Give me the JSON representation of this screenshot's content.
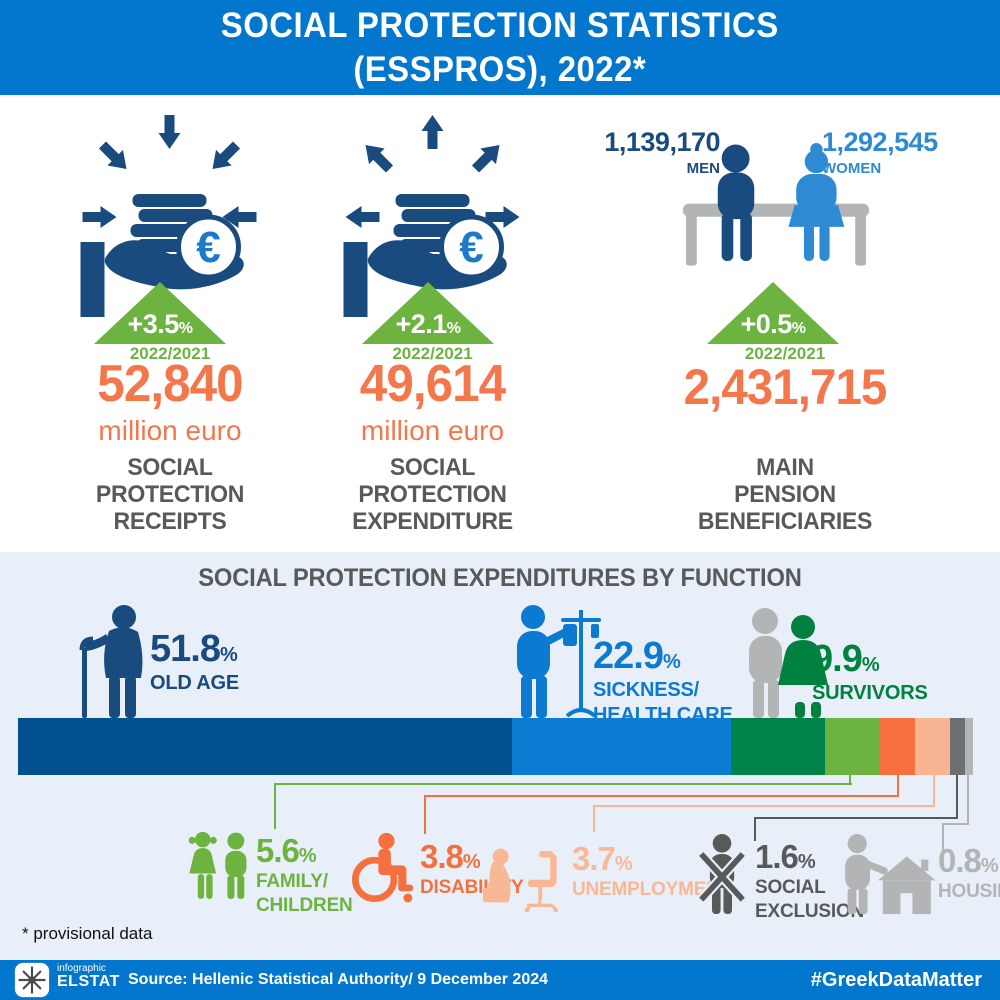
{
  "percent_sign": "%",
  "header": {
    "title_line1": "SOCIAL PROTECTION STATISTICS",
    "title_line2": "(ESSPROS), 2022*"
  },
  "stats": [
    {
      "value": "52,840",
      "unit": "million euro",
      "change": "+3.5",
      "period": "2022/2021",
      "label_line1": "SOCIAL",
      "label_line2": "PROTECTION",
      "label_line3": "RECEIPTS"
    },
    {
      "value": "49,614",
      "unit": "million euro",
      "change": "+2.1",
      "period": "2022/2021",
      "label_line1": "SOCIAL",
      "label_line2": "PROTECTION",
      "label_line3": "EXPENDITURE"
    },
    {
      "value": "2,431,715",
      "change": "+0.5",
      "period": "2022/2021",
      "men_value": "1,139,170",
      "men_label": "MEN",
      "women_value": "1,292,545",
      "women_label": "WOMEN",
      "label_line1": "MAIN",
      "label_line2": "PENSION",
      "label_line3": "BENEFICIARIES"
    }
  ],
  "functions_section": {
    "title": "SOCIAL PROTECTION EXPENDITURES BY FUNCTION",
    "functions": [
      {
        "name": "old-age",
        "pct": "51.8",
        "line1": "OLD AGE",
        "line2": "",
        "color": "#1a4b7f"
      },
      {
        "name": "sickness-health-care",
        "pct": "22.9",
        "line1": "SICKNESS/",
        "line2": "HEALTH CARE",
        "color": "#0d7ad1"
      },
      {
        "name": "survivors",
        "pct": "9.9",
        "line1": "SURVIVORS",
        "line2": "",
        "color": "#00813f"
      },
      {
        "name": "family-children",
        "pct": "5.6",
        "line1": "FAMILY/",
        "line2": "CHILDREN",
        "color": "#6cb33f"
      },
      {
        "name": "disability",
        "pct": "3.8",
        "line1": "DISABILITY",
        "line2": "",
        "color": "#f4703f"
      },
      {
        "name": "unemployment",
        "pct": "3.7",
        "line1": "UNEMPLOYMENT",
        "line2": "",
        "color": "#f8b896"
      },
      {
        "name": "social-exclusion",
        "pct": "1.6",
        "line1": "SOCIAL",
        "line2": "EXCLUSION",
        "color": "#58595b"
      },
      {
        "name": "housing",
        "pct": "0.8",
        "line1": "HOUSING",
        "line2": "",
        "color": "#b2b4b6"
      }
    ]
  },
  "chart_data": {
    "type": "bar",
    "layout": "horizontal-stacked",
    "title": "SOCIAL PROTECTION EXPENDITURES BY FUNCTION",
    "categories": [
      "OLD AGE",
      "SICKNESS/HEALTH CARE",
      "SURVIVORS",
      "FAMILY/CHILDREN",
      "DISABILITY",
      "UNEMPLOYMENT",
      "SOCIAL EXCLUSION",
      "HOUSING"
    ],
    "values": [
      51.8,
      22.9,
      9.9,
      5.6,
      3.8,
      3.7,
      1.6,
      0.8
    ],
    "unit": "%",
    "bar_colors": [
      "#03508e",
      "#0b7cd1",
      "#008348",
      "#6cb33f",
      "#f8703f",
      "#f9b493",
      "#6e6f71",
      "#b2b4b6"
    ]
  },
  "footnote": "* provisional data",
  "footer": {
    "logo_top": "infographic",
    "logo_name": "ELSTAT",
    "source": "Source: Hellenic Statistical Authority/ 9 December 2024",
    "hashtag": "#GreekDataMatter"
  },
  "colors": {
    "banner_blue": "#0277cd",
    "section_bg": "#e9eff8",
    "accent_orange": "#f4764b",
    "growth_green": "#6db33f",
    "label_gray": "#58595b",
    "navy": "#1a4b7f",
    "bright_blue": "#2e8bd3",
    "bench_gray": "#b2b4b6"
  }
}
